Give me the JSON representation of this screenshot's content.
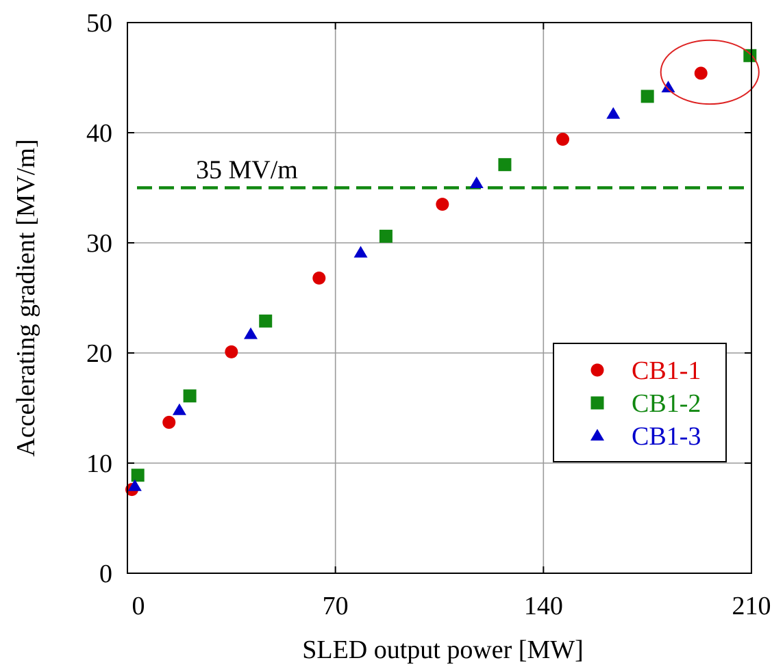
{
  "chart_data": {
    "type": "scatter",
    "xlabel": "SLED output power [MW]",
    "ylabel": "Accelerating gradient [MV/m]",
    "xlim": [
      0,
      210
    ],
    "ylim": [
      0,
      50
    ],
    "xticks": [
      0,
      70,
      140,
      210
    ],
    "yticks": [
      0,
      10,
      20,
      30,
      40,
      50
    ],
    "x_tick_labels": [
      "0",
      "70",
      "140",
      "210"
    ],
    "y_tick_labels": [
      "0",
      "10",
      "20",
      "30",
      "40",
      "50"
    ],
    "grid": true,
    "legend_position": "lower-right",
    "series": [
      {
        "name": "CB1-1",
        "color": "#dd0000",
        "marker": "circle",
        "points": [
          [
            1.5,
            7.6
          ],
          [
            14,
            13.7
          ],
          [
            35,
            20.1
          ],
          [
            64.5,
            26.8
          ],
          [
            106,
            33.5
          ],
          [
            146.5,
            39.4
          ],
          [
            193,
            45.4
          ]
        ]
      },
      {
        "name": "CB1-2",
        "color": "#118811",
        "marker": "square",
        "points": [
          [
            3.5,
            8.9
          ],
          [
            21,
            16.1
          ],
          [
            46.5,
            22.9
          ],
          [
            87,
            30.6
          ],
          [
            127,
            37.1
          ],
          [
            175,
            43.3
          ],
          [
            209.5,
            47
          ]
        ]
      },
      {
        "name": "CB1-3",
        "color": "#0000cc",
        "marker": "triangle",
        "points": [
          [
            2.5,
            7.9
          ],
          [
            17.5,
            14.8
          ],
          [
            41.5,
            21.7
          ],
          [
            78.5,
            29.1
          ],
          [
            117.5,
            35.4
          ],
          [
            163.5,
            41.7
          ],
          [
            182,
            44.1
          ]
        ]
      }
    ],
    "reference_line": {
      "y": 35,
      "label": "35 MV/m",
      "color": "#118811",
      "style": "dashed"
    },
    "highlight": {
      "shape": "ellipse",
      "color": "#dd2222",
      "center": [
        196,
        45.5
      ],
      "radius_data": [
        16.5,
        2.9
      ]
    }
  }
}
